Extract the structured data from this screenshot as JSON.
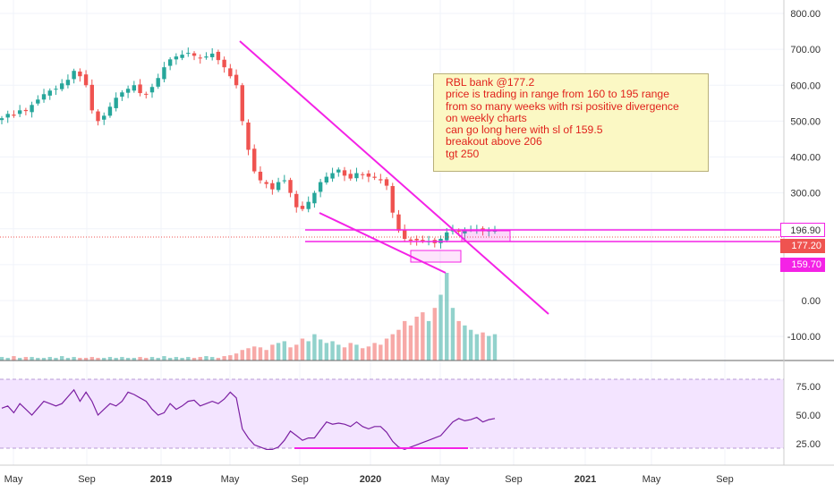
{
  "chart_data": [
    {
      "type": "candlestick",
      "ticker_note": "RBL bank weekly price",
      "y_axis_ticks": [
        "800.00",
        "700.00",
        "600.00",
        "500.00",
        "400.00",
        "300.00",
        "200.00",
        "100.00",
        "0.00",
        "-100.00"
      ],
      "ylim": [
        -150,
        840
      ],
      "x_axis_ticks": [
        "May",
        "Sep",
        "2019",
        "May",
        "Sep",
        "2020",
        "May",
        "Sep",
        "2021",
        "May",
        "Sep"
      ],
      "close_series": [
        508,
        520,
        515,
        530,
        528,
        545,
        560,
        575,
        585,
        590,
        605,
        615,
        640,
        625,
        600,
        530,
        500,
        515,
        540,
        565,
        580,
        590,
        600,
        578,
        575,
        595,
        620,
        650,
        672,
        680,
        685,
        690,
        682,
        675,
        680,
        688,
        670,
        650,
        625,
        600,
        500,
        420,
        360,
        335,
        325,
        310,
        330,
        335,
        300,
        260,
        255,
        275,
        300,
        330,
        345,
        355,
        365,
        348,
        340,
        355,
        350,
        345,
        342,
        335,
        320,
        245,
        195,
        172,
        167,
        168,
        166,
        165,
        160,
        172,
        190,
        196,
        192,
        195,
        197,
        196,
        193,
        195,
        196
      ],
      "volume_relative": [
        4,
        3,
        5,
        3,
        4,
        4,
        3,
        3,
        4,
        3,
        5,
        3,
        4,
        3,
        3,
        4,
        3,
        3,
        4,
        3,
        4,
        3,
        3,
        4,
        3,
        4,
        3,
        5,
        3,
        4,
        3,
        4,
        3,
        4,
        5,
        4,
        3,
        5,
        6,
        8,
        12,
        14,
        16,
        15,
        12,
        18,
        20,
        22,
        15,
        18,
        25,
        22,
        30,
        24,
        20,
        22,
        18,
        15,
        20,
        18,
        14,
        16,
        20,
        18,
        25,
        30,
        35,
        45,
        40,
        50,
        55,
        45,
        60,
        75,
        100,
        60,
        45,
        40,
        35,
        30,
        32,
        28,
        30
      ],
      "annotations": {
        "note_lines": [
          "RBL bank @177.2",
          "price is trading in range from 160 to 195 range",
          "from so many weeks with rsi positive divergence",
          "on weekly charts",
          "can go long here with sl of 159.5",
          "breakout above 206",
          "tgt 250"
        ],
        "price_tags": [
          "196.90",
          "177.20",
          "159.70"
        ],
        "levels": [
          196.9,
          177.2,
          159.7
        ]
      }
    },
    {
      "type": "line",
      "indicator": "RSI",
      "y_axis_ticks": [
        "75.00",
        "50.00",
        "25.00"
      ],
      "ylim": [
        10,
        84
      ],
      "band": [
        20,
        80
      ],
      "values": [
        56,
        58,
        52,
        60,
        55,
        50,
        56,
        62,
        60,
        58,
        60,
        66,
        72,
        62,
        70,
        62,
        50,
        55,
        60,
        58,
        62,
        70,
        68,
        65,
        62,
        55,
        50,
        52,
        60,
        55,
        58,
        62,
        63,
        58,
        60,
        62,
        60,
        64,
        70,
        65,
        38,
        30,
        24,
        22,
        20,
        20,
        22,
        28,
        36,
        32,
        28,
        30,
        30,
        37,
        44,
        42,
        43,
        42,
        40,
        44,
        40,
        38,
        40,
        40,
        35,
        27,
        22,
        20,
        22,
        24,
        26,
        28,
        30,
        32,
        38,
        44,
        47,
        45,
        46,
        48,
        44,
        46,
        47
      ]
    }
  ],
  "colors": {
    "up": "#26a69a",
    "down": "#ef5350",
    "trendline": "#f422e6",
    "rsi_line": "#7b1fa2",
    "rsi_band": "#f3e4ff",
    "note_text": "#e0221c",
    "note_bg": "#fbf8c4",
    "current_price": "#ef5350"
  }
}
